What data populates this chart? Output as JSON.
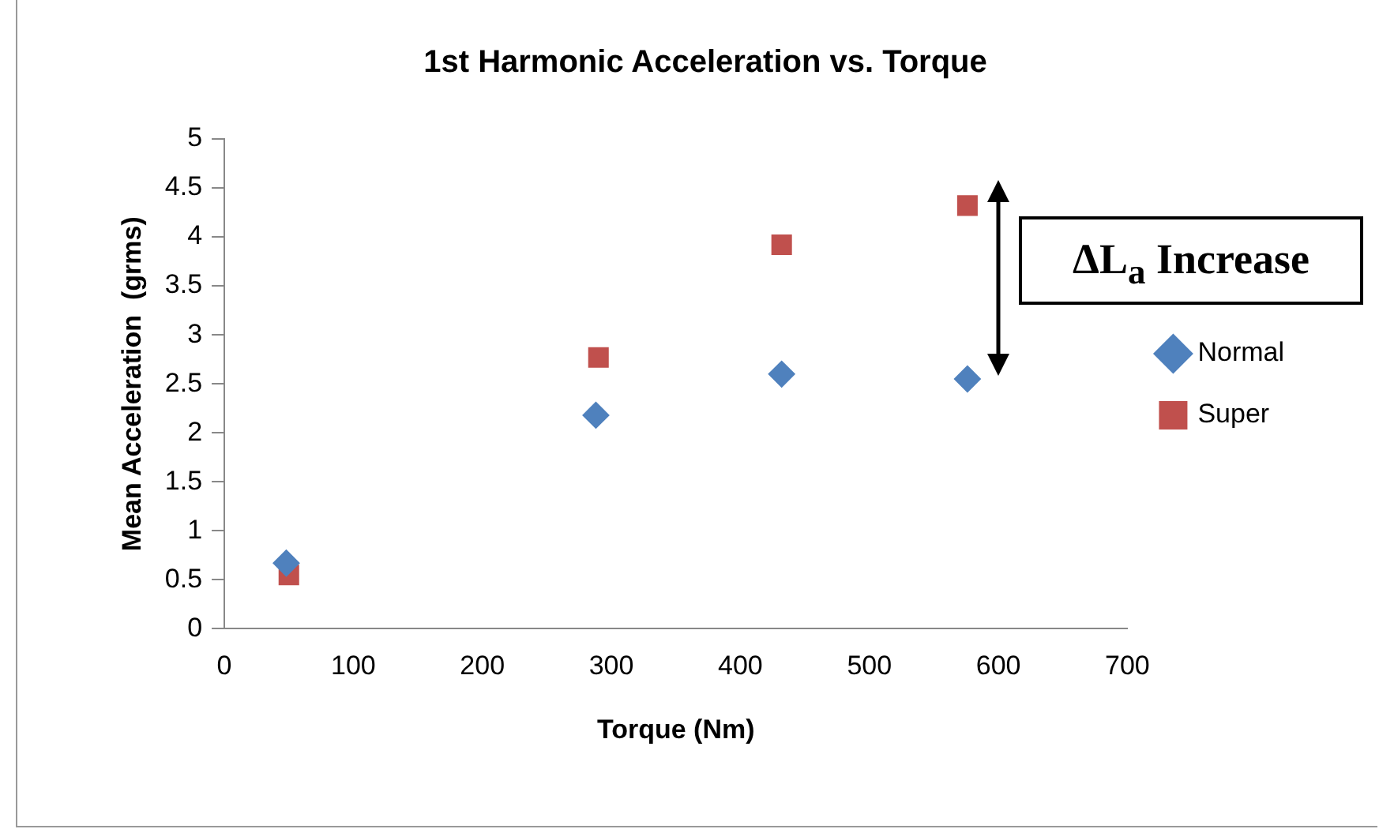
{
  "chart_data": {
    "type": "scatter",
    "title": "1st Harmonic Acceleration vs. Torque",
    "xlabel": "Torque (Nm)",
    "ylabel": "Mean Acceleration  (grms)",
    "xlim": [
      0,
      700
    ],
    "xticks": [
      0,
      100,
      200,
      300,
      400,
      500,
      600,
      700
    ],
    "ylim": [
      0,
      5
    ],
    "yticks": [
      0,
      0.5,
      1,
      1.5,
      2,
      2.5,
      3,
      3.5,
      4,
      4.5,
      5
    ],
    "grid": false,
    "legend": "right",
    "annotations": [
      "ΔL$_{a}$ Increase"
    ],
    "series": [
      {
        "name": "Normal",
        "color": "#4f81bd",
        "marker": "diamond",
        "x": [
          48,
          288,
          432,
          576
        ],
        "values": [
          0.67,
          2.18,
          2.6,
          2.55
        ]
      },
      {
        "name": "Super",
        "color": "#c0504d",
        "marker": "square",
        "x": [
          50,
          290,
          432,
          576
        ],
        "values": [
          0.55,
          2.77,
          3.92,
          4.32
        ]
      }
    ]
  }
}
